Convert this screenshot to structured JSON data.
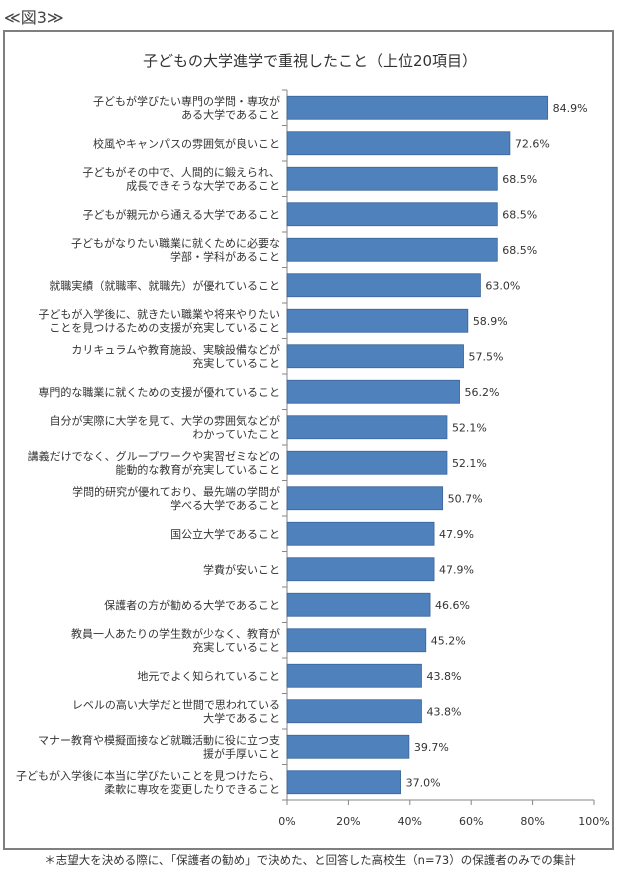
{
  "figure_label": "≪図3≫",
  "footnote": "＊志望大を決める際に、「保護者の勧め」で決めた、と回答した高校生（n=73）の保護者のみでの集計",
  "colors": {
    "bar": "#4f81bd",
    "bar_border": "#3a6596",
    "axis": "#868686",
    "frame": "#7f7f7f"
  },
  "chart_data": {
    "type": "bar",
    "orientation": "horizontal",
    "title": "子どもの大学進学で重視したこと（上位20項目）",
    "xlabel": "",
    "ylabel": "",
    "xlim": [
      0,
      100
    ],
    "x_ticks": [
      "0%",
      "20%",
      "40%",
      "60%",
      "80%",
      "100%"
    ],
    "grid": false,
    "categories": [
      [
        "子どもが学びたい専門の学問・専攻が",
        "ある大学であること"
      ],
      [
        "校風やキャンパスの雰囲気が良いこと"
      ],
      [
        "子どもがその中で、人間的に鍛えられ、",
        "成長できそうな大学であること"
      ],
      [
        "子どもが親元から通える大学であること"
      ],
      [
        "子どもがなりたい職業に就くために必要な",
        "学部・学科があること"
      ],
      [
        "就職実績（就職率、就職先）が優れていること"
      ],
      [
        "子どもが入学後に、就きたい職業や将来やりたい",
        "ことを見つけるための支援が充実していること"
      ],
      [
        "カリキュラムや教育施設、実験設備などが",
        "充実していること"
      ],
      [
        "専門的な職業に就くための支援が優れていること"
      ],
      [
        "自分が実際に大学を見て、大学の雰囲気などが",
        "わかっていたこと"
      ],
      [
        "講義だけでなく、グループワークや実習ゼミなどの",
        "能動的な教育が充実していること"
      ],
      [
        "学問的研究が優れており、最先端の学問が",
        "学べる大学であること"
      ],
      [
        "国公立大学であること"
      ],
      [
        "学費が安いこと"
      ],
      [
        "保護者の方が勧める大学であること"
      ],
      [
        "教員一人あたりの学生数が少なく、教育が",
        "充実していること"
      ],
      [
        "地元でよく知られていること"
      ],
      [
        "レベルの高い大学だと世間で思われている",
        "大学であること"
      ],
      [
        "マナー教育や模擬面接など就職活動に役に立つ支",
        "援が手厚いこと"
      ],
      [
        "子どもが入学後に本当に学びたいことを見つけたら、",
        "柔軟に専攻を変更したりできること"
      ]
    ],
    "values": [
      84.9,
      72.6,
      68.5,
      68.5,
      68.5,
      63.0,
      58.9,
      57.5,
      56.2,
      52.1,
      52.1,
      50.7,
      47.9,
      47.9,
      46.6,
      45.2,
      43.8,
      43.8,
      39.7,
      37.0
    ],
    "data_labels": [
      "84.9%",
      "72.6%",
      "68.5%",
      "68.5%",
      "68.5%",
      "63.0%",
      "58.9%",
      "57.5%",
      "56.2%",
      "52.1%",
      "52.1%",
      "50.7%",
      "47.9%",
      "47.9%",
      "46.6%",
      "45.2%",
      "43.8%",
      "43.8%",
      "39.7%",
      "37.0%"
    ]
  }
}
